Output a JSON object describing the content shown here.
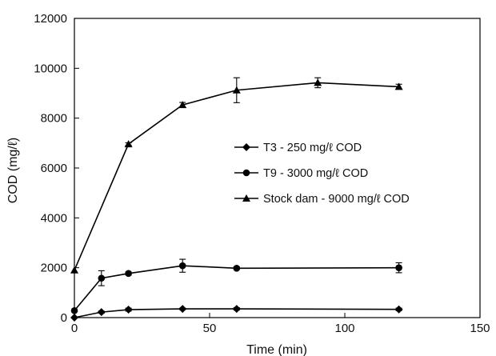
{
  "chart_data": {
    "type": "line",
    "xlabel": "Time (min)",
    "ylabel": "COD (mg/ℓ)",
    "xlim": [
      0,
      150
    ],
    "ylim": [
      0,
      12000
    ],
    "xticks": [
      "0",
      "50",
      "100",
      "150"
    ],
    "yticks": [
      "0",
      "2000",
      "4000",
      "6000",
      "8000",
      "10000",
      "12000"
    ],
    "grid": false,
    "legend_position": "center-right",
    "series": [
      {
        "name": "T3 - 250 mg/ℓ COD",
        "marker": "diamond",
        "x": [
          0,
          10,
          20,
          40,
          60,
          120
        ],
        "y": [
          0,
          220,
          320,
          350,
          350,
          330
        ],
        "err": [
          0,
          40,
          60,
          30,
          50,
          50
        ]
      },
      {
        "name": "T9 - 3000 mg/ℓ COD",
        "marker": "circle",
        "x": [
          0,
          10,
          20,
          40,
          60,
          120
        ],
        "y": [
          280,
          1580,
          1770,
          2080,
          1980,
          2000
        ],
        "err": [
          0,
          300,
          60,
          260,
          50,
          200
        ]
      },
      {
        "name": "Stock dam - 9000 mg/ℓ COD",
        "marker": "triangle",
        "x": [
          0,
          20,
          40,
          60,
          90,
          120
        ],
        "y": [
          1900,
          6960,
          8530,
          9120,
          9420,
          9260
        ],
        "err": [
          0,
          50,
          100,
          500,
          200,
          100
        ]
      }
    ]
  }
}
